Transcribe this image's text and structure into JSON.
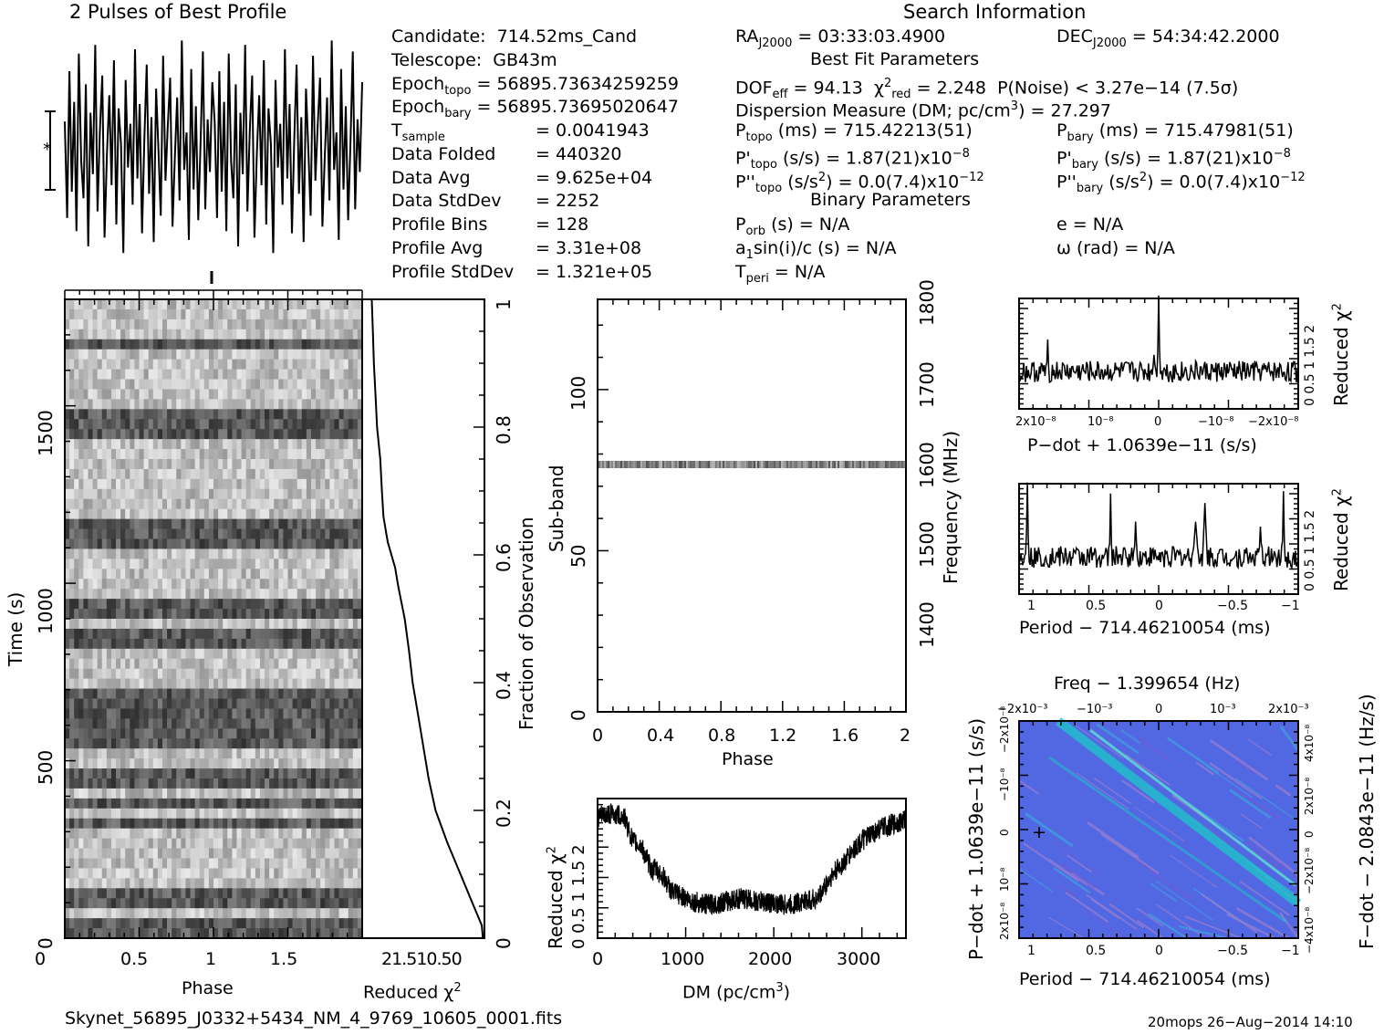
{
  "header": {
    "profile_title": "2 Pulses of Best Profile",
    "search_title": "Search Information",
    "best_fit_title": "Best Fit Parameters",
    "binary_title": "Binary Parameters"
  },
  "info_left": [
    {
      "label": "Candidate:",
      "value": "714.52ms_Cand"
    },
    {
      "label": "Telescope:",
      "value": "GB43m"
    },
    {
      "label": "Epoch",
      "sub": "topo",
      "value": "= 56895.73634259259"
    },
    {
      "label": "Epoch",
      "sub": "bary",
      "value": "= 56895.73695020647"
    },
    {
      "label": "T",
      "sub": "sample",
      "value": "=   0.0041943"
    },
    {
      "label": "Data Folded",
      "value": "=   440320"
    },
    {
      "label": "Data Avg",
      "value": "=   9.625e+04"
    },
    {
      "label": "Data StdDev",
      "value": "=   2252"
    },
    {
      "label": "Profile Bins",
      "value": "=   128"
    },
    {
      "label": "Profile Avg",
      "value": "=   3.31e+08"
    },
    {
      "label": "Profile StdDev",
      "value": "=   1.321e+05"
    }
  ],
  "info_mid": {
    "ra": "RA",
    "ra_sub": "J2000",
    "ra_val": "= 03:33:03.4900",
    "dec": "DEC",
    "dec_sub": "J2000",
    "dec_val": "= 54:34:42.2000",
    "dof": "DOF",
    "dof_sub": "eff",
    "dof_val": "= 94.13",
    "chi": "χ",
    "chi_sup": "2",
    "chi_sub": "red",
    "chi_val": "= 2.248",
    "pnoise": "P(Noise) < 3.27e−14   (7.5σ)",
    "dm": "Dispersion Measure (DM; pc/cm",
    "dm_sup": "3",
    "dm_val": ") = 27.297",
    "ptopo": "P",
    "ptopo_sub": "topo",
    "ptopo_val": "(ms) =  715.42213(51)",
    "pbary": "P",
    "pbary_sub": "bary",
    "pbary_val": "(ms) =  715.47981(51)",
    "pdtopo": "P'",
    "pdtopo_sub": "topo",
    "pdtopo_val": "(s/s) =  1.87(21)x10",
    "pdtopo_exp": "−8",
    "pdbary": "P'",
    "pdbary_sub": "bary",
    "pdbary_val": "(s/s) =  1.87(21)x10",
    "pdbary_exp": "−8",
    "pddtopo": "P''",
    "pddtopo_sub": "topo",
    "pddtopo_val": "(s/s",
    "pddtopo_sup2": "2",
    "pddtopo_val2": ") = 0.0(7.4)x10",
    "pddtopo_exp": "−12",
    "pddbary": "P''",
    "pddbary_sub": "bary",
    "pddbary_val": "(s/s",
    "pddbary_sup2": "2",
    "pddbary_val2": ") = 0.0(7.4)x10",
    "pddbary_exp": "−12",
    "porb": "P",
    "porb_sub": "orb",
    "porb_val": "(s) = N/A",
    "ecc": "e = N/A",
    "asini": "a",
    "asini_sub": "1",
    "asini_val": "sin(i)/c (s) = N/A",
    "omega": "ω (rad) = N/A",
    "tperi": "T",
    "tperi_sub": "peri",
    "tperi_val": "= N/A"
  },
  "footer": {
    "filename": "Skynet_56895_J0332+5434_NM_4_9769_10605_0001.fits",
    "stamp": "20mops 26−Aug−2014 14:10"
  },
  "chart_data": [
    {
      "type": "line",
      "title": "2 Pulses of Best Profile",
      "description_axes": {
        "x": "Phase 0–2",
        "y": "intensity"
      },
      "values_note": "noise-like profile",
      "values": [
        0.62,
        0.18,
        0.85,
        0.3,
        0.71,
        0.12,
        0.93,
        0.44,
        0.27,
        0.79,
        0.05,
        0.66,
        0.38,
        0.97,
        0.21,
        0.58,
        0.83,
        0.09,
        0.47,
        0.74,
        0.33,
        0.9,
        0.15,
        0.68,
        0.52,
        0.02,
        0.81,
        0.41,
        0.61,
        0.24,
        0.95,
        0.36,
        0.7,
        0.11,
        0.55,
        0.88,
        0.29,
        0.64,
        0.07,
        0.77,
        0.49,
        0.19,
        0.92,
        0.35,
        0.6,
        0.82,
        0.14,
        0.45,
        0.73,
        0.26,
        0.99,
        0.4,
        0.57,
        0.08,
        0.86,
        0.31,
        0.69,
        0.17,
        0.53,
        0.94,
        0.22,
        0.63,
        0.39,
        0.8,
        0.62,
        0.18,
        0.85,
        0.3,
        0.71,
        0.12,
        0.93,
        0.44,
        0.27,
        0.79,
        0.05,
        0.66,
        0.38,
        0.97,
        0.21,
        0.58,
        0.83,
        0.09,
        0.47,
        0.74,
        0.33,
        0.9,
        0.15,
        0.68,
        0.52,
        0.02,
        0.81,
        0.41,
        0.61,
        0.24,
        0.95,
        0.36,
        0.7,
        0.11,
        0.55,
        0.88,
        0.29,
        0.64,
        0.07,
        0.77,
        0.49,
        0.19,
        0.92,
        0.35,
        0.6,
        0.82,
        0.14,
        0.45,
        0.73,
        0.26,
        0.99,
        0.4,
        0.57,
        0.08,
        0.86,
        0.31,
        0.69,
        0.17,
        0.53,
        0.94,
        0.22,
        0.63,
        0.39,
        0.8
      ]
    },
    {
      "type": "heatmap",
      "xlabel": "Phase",
      "ylabel": "Time (s)",
      "xlim": [
        0,
        2
      ],
      "ylim": [
        0,
        1800
      ],
      "x_ticks": [
        "0",
        "0.5",
        "1",
        "1.5"
      ],
      "y_ticks": [
        "0",
        "500",
        "1000",
        "1500"
      ],
      "right_axis_label": "Fraction of Observation",
      "right_ticks": [
        "0",
        "0.2",
        "0.4",
        "0.6",
        "0.8",
        "1"
      ],
      "dark_rows_fraction": [
        0.01,
        0.06,
        0.18,
        0.21,
        0.25,
        0.31,
        0.34,
        0.37,
        0.47,
        0.52,
        0.62,
        0.64,
        0.8,
        0.82,
        0.93
      ],
      "reduced_chi2": {
        "xlabel": "Reduced χ",
        "xlabel_sup": "2",
        "x_ticks": [
          "2",
          "1.5",
          "1",
          "0.5",
          "0"
        ],
        "curve_fraction_vs_chi2": [
          [
            0,
            0.03
          ],
          [
            0.02,
            0.05
          ],
          [
            0.05,
            0.2
          ],
          [
            0.1,
            0.45
          ],
          [
            0.15,
            0.7
          ],
          [
            0.2,
            0.92
          ],
          [
            0.25,
            1.05
          ],
          [
            0.3,
            1.15
          ],
          [
            0.35,
            1.25
          ],
          [
            0.4,
            1.35
          ],
          [
            0.45,
            1.42
          ],
          [
            0.5,
            1.5
          ],
          [
            0.55,
            1.62
          ],
          [
            0.58,
            1.68
          ],
          [
            0.62,
            1.82
          ],
          [
            0.66,
            1.9
          ],
          [
            0.7,
            1.93
          ],
          [
            0.75,
            1.96
          ],
          [
            0.8,
            2.02
          ],
          [
            0.85,
            2.05
          ],
          [
            0.9,
            2.08
          ],
          [
            0.95,
            2.1
          ],
          [
            1,
            2.12
          ]
        ]
      }
    },
    {
      "type": "heatmap",
      "xlabel": "Phase",
      "ylabel": "Sub-band",
      "right_axis_label": "Frequency (MHz)",
      "xlim": [
        0,
        2
      ],
      "ylim": [
        0,
        128
      ],
      "x_ticks": [
        "0",
        "0.4",
        "0.8",
        "1.2",
        "1.6",
        "2"
      ],
      "y_ticks": [
        "0",
        "50",
        "100"
      ],
      "right_ticks": [
        "1400",
        "1500",
        "1600",
        "1700",
        "1800"
      ],
      "bright_subband": 77
    },
    {
      "type": "line",
      "xlabel": "DM (pc/cm",
      "xlabel_sup": "3",
      "xlabel_end": ")",
      "ylabel": "Reduced χ",
      "ylabel_sup": "2",
      "xlim": [
        0,
        3500
      ],
      "ylim": [
        0,
        2.3
      ],
      "x_ticks": [
        "0",
        "1000",
        "2000",
        "3000"
      ],
      "y_ticks": [
        "0",
        "0.5",
        "1",
        "1.5",
        "2"
      ],
      "x": [
        0,
        150,
        300,
        400,
        500,
        620,
        650,
        750,
        850,
        950,
        1000,
        1100,
        1250,
        1400,
        1500,
        1600,
        1700,
        1800,
        1900,
        2000,
        2100,
        2200,
        2300,
        2400,
        2500,
        2600,
        2700,
        2800,
        2900,
        3000,
        3100,
        3200,
        3300,
        3400,
        3500
      ],
      "y": [
        2.0,
        2.05,
        2.0,
        1.6,
        1.5,
        1.1,
        1.15,
        1.0,
        0.75,
        0.7,
        0.65,
        0.6,
        0.55,
        0.58,
        0.62,
        0.65,
        0.65,
        0.6,
        0.6,
        0.58,
        0.55,
        0.55,
        0.6,
        0.62,
        0.65,
        0.9,
        1.1,
        1.25,
        1.45,
        1.6,
        1.7,
        1.8,
        1.85,
        1.9,
        1.95
      ]
    },
    {
      "type": "line",
      "xlabel": "P−dot + 1.0639e−11 (s/s)",
      "ylabel": "Reduced χ",
      "ylabel_sup": "2",
      "x_ticks": [
        "2x10⁻⁸",
        "10⁻⁸",
        "0",
        "−10⁻⁸",
        "−2x10⁻⁸"
      ],
      "y_ticks": [
        "0",
        "0.5",
        "1",
        "1.5",
        "2"
      ],
      "peak_at": 0
    },
    {
      "type": "line",
      "xlabel": "Period − 714.46210054 (ms)",
      "ylabel": "Reduced χ",
      "ylabel_sup": "2",
      "x_ticks": [
        "1",
        "0.5",
        "0",
        "−0.5",
        "−1"
      ],
      "y_ticks": [
        "0",
        "0.5",
        "1",
        "1.5",
        "2"
      ]
    },
    {
      "type": "heatmap",
      "title": "Freq − 1.399654 (Hz)",
      "xlabel": "Period − 714.46210054 (ms)",
      "ylabel": "P−dot + 1.0639e−11 (s/s)",
      "right_axis_label": "F−dot − 2.0843e−11 (Hz/s)",
      "x_ticks": [
        "1",
        "0.5",
        "0",
        "−0.5",
        "−1"
      ],
      "top_ticks": [
        "−2x10⁻³",
        "−10⁻³",
        "0",
        "10⁻³",
        "2x10⁻³"
      ],
      "left_ticks": [
        "2x10⁻⁸",
        "10⁻⁸",
        "0",
        "−10⁻⁸",
        "−2x10⁻⁸"
      ],
      "right_ticks": [
        "−4x10⁻⁸",
        "−2x10⁻⁸",
        "0",
        "2x10⁻⁸",
        "4x10⁻⁸"
      ],
      "colors": {
        "bg": "#2b3fd6",
        "ridge": "#1ec8c8",
        "stripe": "#9a7fd0"
      }
    }
  ]
}
